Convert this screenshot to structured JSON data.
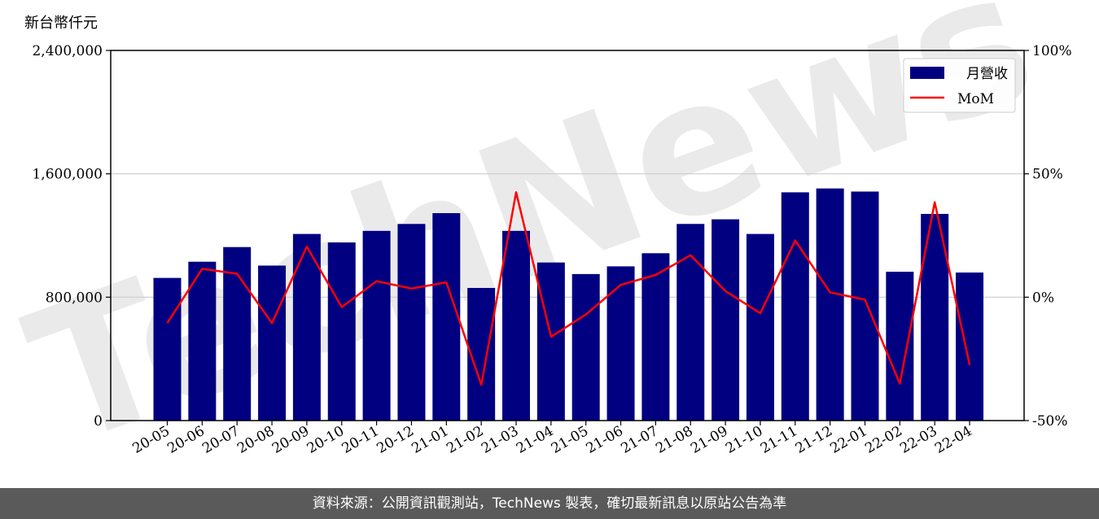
{
  "unit_label": "新台幣仟元",
  "footer_text": "資料來源：公開資訊觀測站，TechNews 製表，確切最新訊息以原站公告為準",
  "watermark": "TechNews",
  "colors": {
    "bar": "#000080",
    "line": "#ff0000",
    "footer_bg": "#5a5a5a"
  },
  "chart_data": {
    "type": "bar",
    "categories": [
      "20-05",
      "20-06",
      "20-07",
      "20-08",
      "20-09",
      "20-10",
      "20-11",
      "20-12",
      "21-01",
      "21-02",
      "21-03",
      "21-04",
      "21-05",
      "21-06",
      "21-07",
      "21-08",
      "21-09",
      "21-10",
      "21-11",
      "21-12",
      "22-01",
      "22-02",
      "22-03",
      "22-04"
    ],
    "series": [
      {
        "name": "月營收",
        "type": "bar",
        "axis": "left",
        "values": [
          925000,
          1030000,
          1125000,
          1005000,
          1210000,
          1155000,
          1230000,
          1275000,
          1345000,
          860000,
          1230000,
          1025000,
          950000,
          1000000,
          1085000,
          1275000,
          1305000,
          1210000,
          1480000,
          1505000,
          1485000,
          965000,
          1340000,
          960000
        ]
      },
      {
        "name": "MoM",
        "type": "line",
        "axis": "right",
        "unit": "%",
        "values": [
          -10.5,
          11.5,
          9.5,
          -10.5,
          20.5,
          -4,
          6.5,
          3.5,
          6,
          -35.5,
          42.5,
          -16,
          -7,
          5,
          9,
          17,
          2.5,
          -6.5,
          23,
          2,
          -1,
          -35,
          38.5,
          -27.5
        ]
      }
    ],
    "y_left": {
      "min": 0,
      "max": 2400000,
      "ticks": [
        0,
        800000,
        1600000,
        2400000
      ],
      "tick_labels": [
        "0",
        "800,000",
        "1,600,000",
        "2,400,000"
      ]
    },
    "y_right": {
      "min": -50,
      "max": 100,
      "ticks": [
        -50,
        0,
        50,
        100
      ],
      "tick_labels": [
        "-50%",
        "0%",
        "50%",
        "100%"
      ]
    },
    "grid": "horizontal",
    "legend": {
      "position": "top-right",
      "entries": [
        "月營收",
        "MoM"
      ]
    }
  }
}
